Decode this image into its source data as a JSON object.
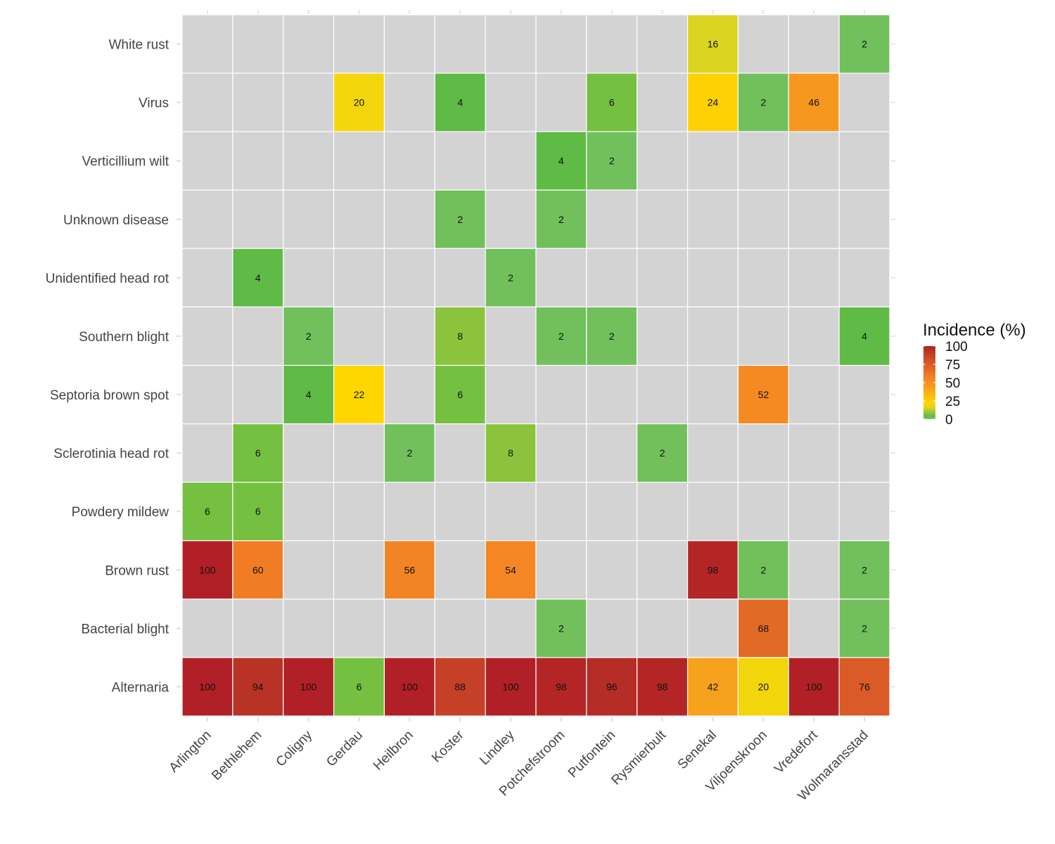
{
  "chart_data": {
    "type": "heatmap",
    "title": "",
    "xlabel": "",
    "ylabel": "",
    "x_categories": [
      "Arlington",
      "Bethlehem",
      "Coligny",
      "Gerdau",
      "Heilbron",
      "Koster",
      "Lindley",
      "Potchefstroom",
      "Putfontein",
      "Rysmierbult",
      "Senekal",
      "Viljoenskroon",
      "Vredefort",
      "Wolmaransstad"
    ],
    "y_categories": [
      "White rust",
      "Virus",
      "Verticillium wilt",
      "Unknown disease",
      "Unidentified head rot",
      "Southern blight",
      "Septoria brown spot",
      "Sclerotinia head rot",
      "Powdery mildew",
      "Brown rust",
      "Bacterial blight",
      "Alternaria"
    ],
    "values": [
      [
        null,
        null,
        null,
        null,
        null,
        null,
        null,
        null,
        null,
        null,
        16,
        null,
        null,
        2
      ],
      [
        null,
        null,
        null,
        20,
        null,
        4,
        null,
        null,
        6,
        null,
        24,
        2,
        46,
        null
      ],
      [
        null,
        null,
        null,
        null,
        null,
        null,
        null,
        4,
        2,
        null,
        null,
        null,
        null,
        null
      ],
      [
        null,
        null,
        null,
        null,
        null,
        2,
        null,
        2,
        null,
        null,
        null,
        null,
        null,
        null
      ],
      [
        null,
        4,
        null,
        null,
        null,
        null,
        2,
        null,
        null,
        null,
        null,
        null,
        null,
        null
      ],
      [
        null,
        null,
        2,
        null,
        null,
        8,
        null,
        2,
        2,
        null,
        null,
        null,
        null,
        4
      ],
      [
        null,
        null,
        4,
        22,
        null,
        6,
        null,
        null,
        null,
        null,
        null,
        52,
        null,
        null
      ],
      [
        null,
        6,
        null,
        null,
        2,
        null,
        8,
        null,
        null,
        2,
        null,
        null,
        null,
        null
      ],
      [
        6,
        6,
        null,
        null,
        null,
        null,
        null,
        null,
        null,
        null,
        null,
        null,
        null,
        null
      ],
      [
        100,
        60,
        null,
        null,
        56,
        null,
        54,
        null,
        null,
        null,
        98,
        2,
        null,
        2
      ],
      [
        null,
        null,
        null,
        null,
        null,
        null,
        null,
        2,
        null,
        null,
        null,
        68,
        null,
        2
      ],
      [
        100,
        94,
        100,
        6,
        100,
        88,
        100,
        98,
        96,
        98,
        42,
        20,
        100,
        76
      ]
    ],
    "legend": {
      "title": "Incidence (%)",
      "position": "right",
      "ticks": [
        100,
        75,
        50,
        25,
        0
      ],
      "range": [
        0,
        100
      ]
    },
    "colors": {
      "missing": "#d3d3d3",
      "grid": "#ffffff",
      "scale": [
        {
          "v": 0,
          "c": "#82c572"
        },
        {
          "v": 4,
          "c": "#5fba46"
        },
        {
          "v": 8,
          "c": "#8bc43c"
        },
        {
          "v": 16,
          "c": "#dbd521"
        },
        {
          "v": 22,
          "c": "#ffd600"
        },
        {
          "v": 25,
          "c": "#fece08"
        },
        {
          "v": 42,
          "c": "#f7a21c"
        },
        {
          "v": 52,
          "c": "#f58a22"
        },
        {
          "v": 60,
          "c": "#f07d24"
        },
        {
          "v": 68,
          "c": "#e26a27"
        },
        {
          "v": 76,
          "c": "#da5a28"
        },
        {
          "v": 88,
          "c": "#c64027"
        },
        {
          "v": 94,
          "c": "#b93226"
        },
        {
          "v": 100,
          "c": "#b12026"
        }
      ]
    }
  }
}
